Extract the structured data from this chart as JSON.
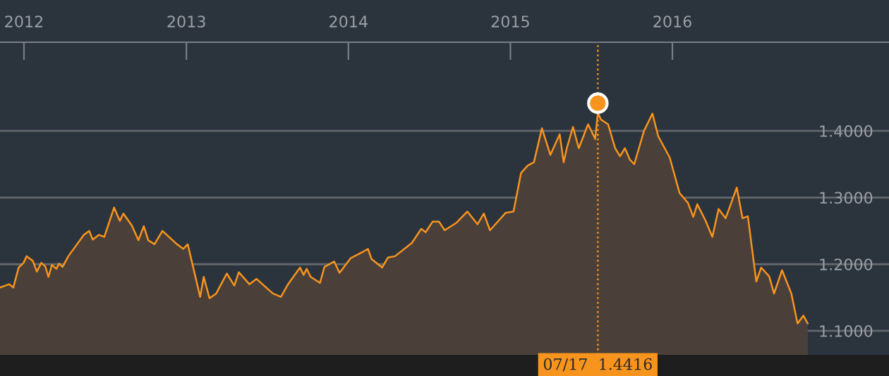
{
  "chart_data": {
    "type": "area",
    "xlim": [
      "2011-11-08",
      "2017-05-03"
    ],
    "ylim": [
      1.064,
      1.533
    ],
    "xticks": [
      {
        "value": "2012-01-01",
        "label": "2012"
      },
      {
        "value": "2013-01-01",
        "label": "2013"
      },
      {
        "value": "2014-01-01",
        "label": "2014"
      },
      {
        "value": "2015-01-01",
        "label": "2015"
      },
      {
        "value": "2016-01-01",
        "label": "2016"
      }
    ],
    "yticks": [
      {
        "value": 1.1,
        "label": "1.1000"
      },
      {
        "value": 1.2,
        "label": "1.2000"
      },
      {
        "value": 1.3,
        "label": "1.3000"
      },
      {
        "value": 1.4,
        "label": "1.4000"
      }
    ],
    "grid": "y",
    "series": [
      {
        "color": "#f7941d",
        "marker": "none",
        "x": [
          "2011-11-08",
          "2011-11-29",
          "2011-12-08",
          "2011-12-20",
          "2011-12-31",
          "2012-01-07",
          "2012-01-21",
          "2012-01-30",
          "2012-02-09",
          "2012-02-18",
          "2012-02-25",
          "2012-03-04",
          "2012-03-14",
          "2012-03-20",
          "2012-03-28",
          "2012-04-10",
          "2012-05-15",
          "2012-05-27",
          "2012-06-04",
          "2012-06-18",
          "2012-06-30",
          "2012-07-22",
          "2012-08-04",
          "2012-08-12",
          "2012-08-31",
          "2012-09-15",
          "2012-09-27",
          "2012-10-07",
          "2012-10-21",
          "2012-11-08",
          "2012-11-26",
          "2012-12-09",
          "2012-12-25",
          "2013-01-04",
          "2013-02-01",
          "2013-02-09",
          "2013-02-22",
          "2013-03-09",
          "2013-04-02",
          "2013-04-19",
          "2013-04-29",
          "2013-05-23",
          "2013-06-08",
          "2013-07-15",
          "2013-08-02",
          "2013-08-18",
          "2013-09-14",
          "2013-09-22",
          "2013-09-29",
          "2013-10-08",
          "2013-10-29",
          "2013-11-08",
          "2013-11-30",
          "2013-12-12",
          "2014-01-06",
          "2014-02-01",
          "2014-02-14",
          "2014-02-22",
          "2014-03-18",
          "2014-03-31",
          "2014-04-16",
          "2014-05-24",
          "2014-06-14",
          "2014-06-24",
          "2014-07-10",
          "2014-07-24",
          "2014-08-06",
          "2014-09-01",
          "2014-09-26",
          "2014-10-19",
          "2014-11-02",
          "2014-11-16",
          "2014-12-05",
          "2014-12-21",
          "2015-01-08",
          "2015-01-25",
          "2015-02-09",
          "2015-02-23",
          "2015-03-13",
          "2015-04-01",
          "2015-04-22",
          "2015-05-01",
          "2015-05-08",
          "2015-05-22",
          "2015-06-04",
          "2015-06-25",
          "2015-07-11",
          "2015-07-17",
          "2015-07-24",
          "2015-08-09",
          "2015-08-25",
          "2015-09-05",
          "2015-09-16",
          "2015-09-27",
          "2015-10-07",
          "2015-10-29",
          "2015-11-17",
          "2015-11-30",
          "2015-12-26",
          "2016-01-17",
          "2016-02-05",
          "2016-02-17",
          "2016-02-26",
          "2016-03-16",
          "2016-03-31",
          "2016-04-14",
          "2016-04-30",
          "2016-05-25",
          "2016-06-07",
          "2016-06-19",
          "2016-07-08",
          "2016-07-19",
          "2016-08-06",
          "2016-08-17",
          "2016-09-04",
          "2016-09-25",
          "2016-10-09",
          "2016-10-22",
          "2016-11-01"
        ],
        "values": [
          1.165,
          1.17,
          1.165,
          1.195,
          1.202,
          1.212,
          1.205,
          1.189,
          1.202,
          1.197,
          1.181,
          1.199,
          1.193,
          1.201,
          1.196,
          1.212,
          1.244,
          1.25,
          1.237,
          1.244,
          1.241,
          1.285,
          1.265,
          1.276,
          1.258,
          1.236,
          1.257,
          1.236,
          1.23,
          1.25,
          1.239,
          1.231,
          1.223,
          1.23,
          1.151,
          1.181,
          1.149,
          1.156,
          1.186,
          1.168,
          1.188,
          1.17,
          1.178,
          1.156,
          1.151,
          1.17,
          1.195,
          1.184,
          1.193,
          1.181,
          1.172,
          1.196,
          1.204,
          1.187,
          1.209,
          1.218,
          1.223,
          1.208,
          1.195,
          1.21,
          1.212,
          1.232,
          1.253,
          1.248,
          1.264,
          1.264,
          1.251,
          1.262,
          1.279,
          1.26,
          1.276,
          1.251,
          1.265,
          1.277,
          1.279,
          1.337,
          1.348,
          1.353,
          1.404,
          1.364,
          1.395,
          1.353,
          1.374,
          1.406,
          1.374,
          1.41,
          1.388,
          1.427,
          1.417,
          1.41,
          1.374,
          1.362,
          1.374,
          1.357,
          1.35,
          1.4,
          1.426,
          1.392,
          1.36,
          1.307,
          1.292,
          1.271,
          1.29,
          1.265,
          1.241,
          1.283,
          1.269,
          1.315,
          1.269,
          1.272,
          1.174,
          1.195,
          1.182,
          1.156,
          1.191,
          1.156,
          1.111,
          1.123,
          1.111
        ]
      },
      {
        "type": "scatter",
        "color": "#f7941d",
        "marker": "circle",
        "x": [
          "2015-07-17"
        ],
        "values": [
          1.4416
        ]
      }
    ],
    "ref_lines": [
      {
        "axis": "x",
        "value": "2015-07-17",
        "label": "07/17  1.4416",
        "color": "#f7941d",
        "line_style": "dotted"
      }
    ]
  }
}
